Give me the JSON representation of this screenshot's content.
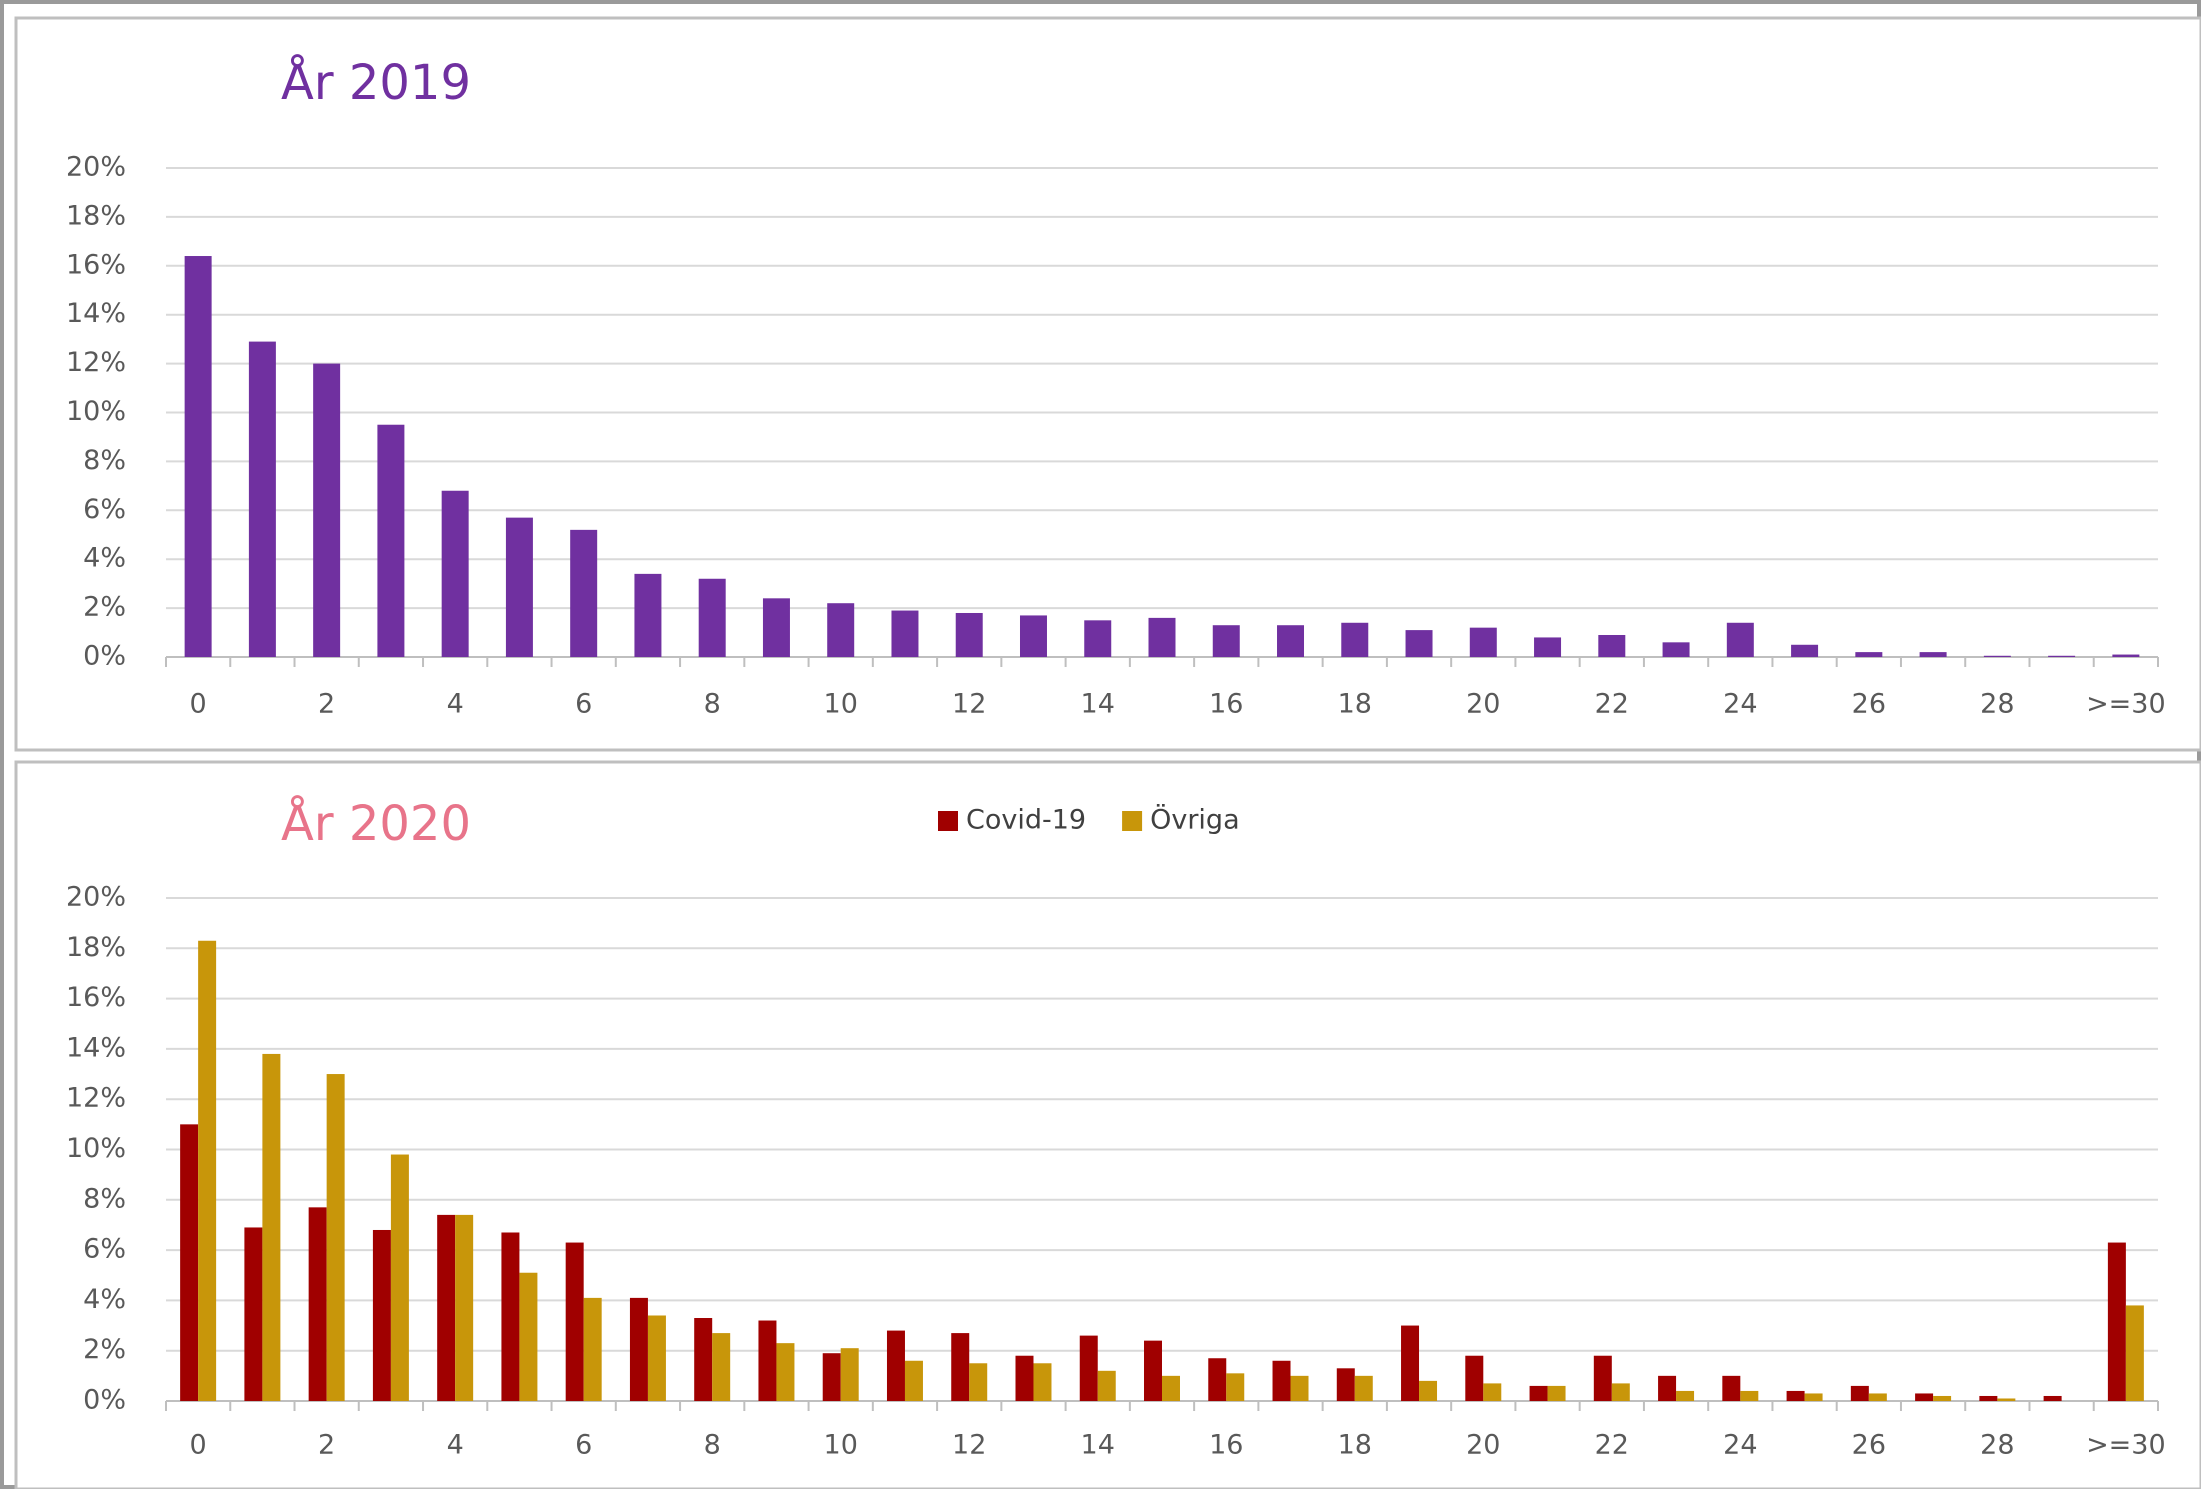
{
  "chart_data": [
    {
      "type": "bar",
      "title": "År 2019",
      "categories": [
        "0",
        null,
        "2",
        null,
        "4",
        null,
        "6",
        null,
        "8",
        null,
        "10",
        null,
        "12",
        null,
        "14",
        null,
        "16",
        null,
        "18",
        null,
        "20",
        null,
        "22",
        null,
        "24",
        null,
        "26",
        null,
        "28",
        null,
        ">=30"
      ],
      "values": [
        16.4,
        12.9,
        12.0,
        9.5,
        6.8,
        5.7,
        5.2,
        3.4,
        3.2,
        2.4,
        2.2,
        1.9,
        1.8,
        1.7,
        1.5,
        1.6,
        1.3,
        1.3,
        1.4,
        1.1,
        1.2,
        0.8,
        0.9,
        0.6,
        1.4,
        0.5,
        0.2,
        0.2,
        0.05,
        0.05,
        0.1
      ],
      "color": "#7030a0",
      "ylim": [
        0,
        20
      ],
      "yticks": [
        {
          "value": 0,
          "label": "0%"
        },
        {
          "value": 2,
          "label": "2%"
        },
        {
          "value": 4,
          "label": "4%"
        },
        {
          "value": 6,
          "label": "6%"
        },
        {
          "value": 8,
          "label": "8%"
        },
        {
          "value": 10,
          "label": "10%"
        },
        {
          "value": 12,
          "label": "12%"
        },
        {
          "value": 14,
          "label": "14%"
        },
        {
          "value": 16,
          "label": "16%"
        },
        {
          "value": 18,
          "label": "18%"
        },
        {
          "value": 20,
          "label": "20%"
        }
      ],
      "grid": true
    },
    {
      "type": "bar",
      "title": "År 2020",
      "categories": [
        "0",
        null,
        "2",
        null,
        "4",
        null,
        "6",
        null,
        "8",
        null,
        "10",
        null,
        "12",
        null,
        "14",
        null,
        "16",
        null,
        "18",
        null,
        "20",
        null,
        "22",
        null,
        "24",
        null,
        "26",
        null,
        "28",
        null,
        ">=30"
      ],
      "series": [
        {
          "name": "Covid-19",
          "color": "#a00000",
          "values": [
            11.0,
            6.9,
            7.7,
            6.8,
            7.4,
            6.7,
            6.3,
            4.1,
            3.3,
            3.2,
            1.9,
            2.8,
            2.7,
            1.8,
            2.6,
            2.4,
            1.7,
            1.6,
            1.3,
            3.0,
            1.8,
            0.6,
            1.8,
            1.0,
            1.0,
            0.4,
            0.6,
            0.3,
            0.2,
            0.2,
            6.3
          ]
        },
        {
          "name": "Övriga",
          "color": "#c8960a",
          "values": [
            18.3,
            13.8,
            13.0,
            9.8,
            7.4,
            5.1,
            4.1,
            3.4,
            2.7,
            2.3,
            2.1,
            1.6,
            1.5,
            1.5,
            1.2,
            1.0,
            1.1,
            1.0,
            1.0,
            0.8,
            0.7,
            0.6,
            0.7,
            0.4,
            0.4,
            0.3,
            0.3,
            0.2,
            0.1,
            0,
            3.8
          ]
        }
      ],
      "ylim": [
        0,
        20
      ],
      "yticks": [
        {
          "value": 0,
          "label": "0%"
        },
        {
          "value": 2,
          "label": "2%"
        },
        {
          "value": 4,
          "label": "4%"
        },
        {
          "value": 6,
          "label": "6%"
        },
        {
          "value": 8,
          "label": "8%"
        },
        {
          "value": 10,
          "label": "10%"
        },
        {
          "value": 12,
          "label": "12%"
        },
        {
          "value": 14,
          "label": "14%"
        },
        {
          "value": 16,
          "label": "16%"
        },
        {
          "value": 18,
          "label": "18%"
        },
        {
          "value": 20,
          "label": "20%"
        }
      ],
      "grid": true,
      "legend": "top"
    }
  ]
}
